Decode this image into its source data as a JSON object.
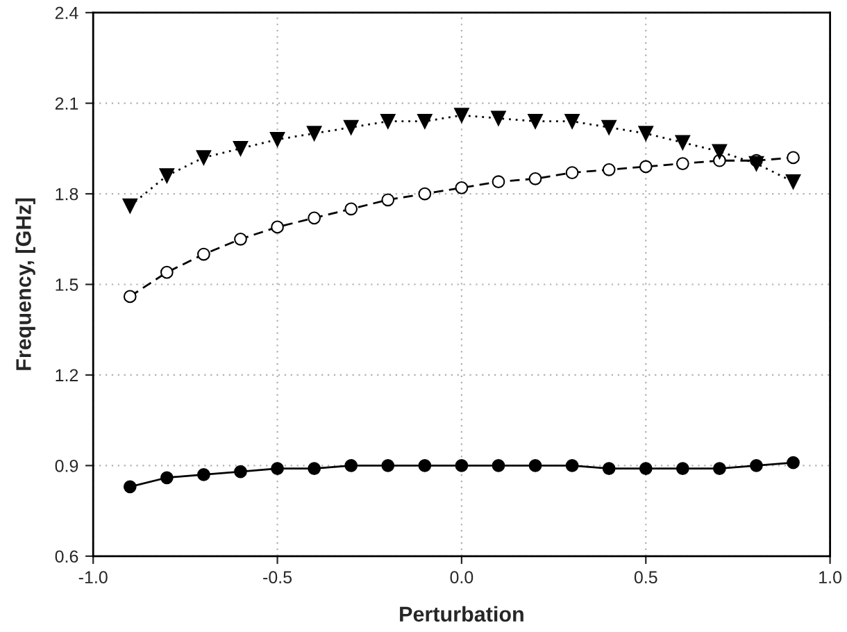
{
  "chart_data": {
    "type": "line",
    "xlabel": "Perturbation",
    "ylabel": "Frequency, [GHz]",
    "x": [
      -0.9,
      -0.8,
      -0.7,
      -0.6,
      -0.5,
      -0.4,
      -0.3,
      -0.2,
      -0.1,
      0.0,
      0.1,
      0.2,
      0.3,
      0.4,
      0.5,
      0.6,
      0.7,
      0.8,
      0.9
    ],
    "series": [
      {
        "color": "#000000",
        "marker": "triangle",
        "line_style": "dotted",
        "values": [
          1.76,
          1.86,
          1.92,
          1.95,
          1.98,
          2.0,
          2.02,
          2.04,
          2.04,
          2.06,
          2.05,
          2.04,
          2.04,
          2.02,
          2.0,
          1.97,
          1.94,
          1.9,
          1.84
        ]
      },
      {
        "color": "#000000",
        "marker": "circle",
        "line_style": "dashed",
        "values": [
          1.46,
          1.54,
          1.6,
          1.65,
          1.69,
          1.72,
          1.75,
          1.78,
          1.8,
          1.82,
          1.84,
          1.85,
          1.87,
          1.88,
          1.89,
          1.9,
          1.91,
          1.91,
          1.92
        ]
      },
      {
        "color": "#000000",
        "marker": "circle",
        "line_style": "solid",
        "values": [
          0.83,
          0.86,
          0.87,
          0.88,
          0.89,
          0.89,
          0.9,
          0.9,
          0.9,
          0.9,
          0.9,
          0.9,
          0.9,
          0.89,
          0.89,
          0.89,
          0.89,
          0.9,
          0.91
        ]
      }
    ],
    "xlim": [
      -1.0,
      1.0
    ],
    "xticks": [
      {
        "value": -1.0,
        "label": "-1.0"
      },
      {
        "value": -0.5,
        "label": "-0.5"
      },
      {
        "value": 0.0,
        "label": "0.0"
      },
      {
        "value": 0.5,
        "label": "0.5"
      },
      {
        "value": 1.0,
        "label": "1.0"
      }
    ],
    "ylim": [
      0.6,
      2.4
    ],
    "yticks": [
      {
        "value": 0.6,
        "label": "0.6"
      },
      {
        "value": 0.9,
        "label": "0.9"
      },
      {
        "value": 1.2,
        "label": "1.2"
      },
      {
        "value": 1.5,
        "label": "1.5"
      },
      {
        "value": 1.8,
        "label": "1.8"
      },
      {
        "value": 2.1,
        "label": "2.1"
      },
      {
        "value": 2.4,
        "label": "2.4"
      }
    ],
    "grid": true
  }
}
